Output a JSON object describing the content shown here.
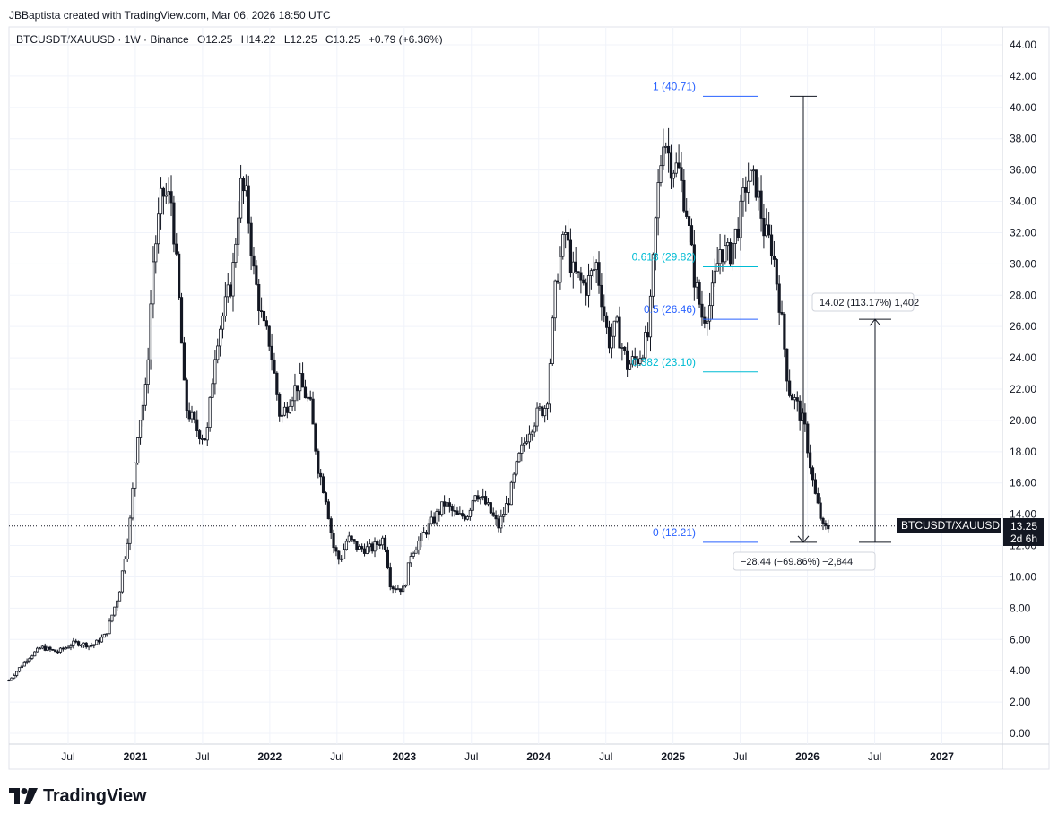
{
  "header": {
    "text": "JBBaptista created with TradingView.com, Mar 06, 2026 18:50 UTC"
  },
  "legend": {
    "symbol": "BTCUSDT/XAUUSD · 1W · Binance",
    "open": "O12.25",
    "high": "H14.22",
    "low": "L12.25",
    "close": "C13.25",
    "change": "+0.79 (+6.36%)"
  },
  "price_label": {
    "symbol": "BTCUSDT/XAUUSD",
    "value": "13.25",
    "countdown": "2d 6h"
  },
  "measure_up": {
    "text": "14.02 (113.17%) 1,402"
  },
  "measure_down": {
    "text": "−28.44 (−69.86%) −2,844"
  },
  "fib_levels": [
    {
      "label": "1 (40.71)",
      "value": 40.71,
      "color": "#2962ff"
    },
    {
      "label": "0.618 (29.82)",
      "value": 29.82,
      "color": "#00bcd4"
    },
    {
      "label": "0.5 (26.46)",
      "value": 26.46,
      "color": "#2962ff"
    },
    {
      "label": "0.382 (23.10)",
      "value": 23.1,
      "color": "#00bcd4"
    },
    {
      "label": "0 (12.21)",
      "value": 12.21,
      "color": "#2962ff"
    }
  ],
  "footer": {
    "brand": "TradingView"
  },
  "chart_data": {
    "type": "candlestick",
    "symbol": "BTCUSDT/XAUUSD",
    "interval": "1W",
    "ylim": [
      0,
      44
    ],
    "y_ticks": [
      "44.00",
      "42.00",
      "40.00",
      "38.00",
      "36.00",
      "34.00",
      "32.00",
      "30.00",
      "28.00",
      "26.00",
      "24.00",
      "22.00",
      "20.00",
      "18.00",
      "16.00",
      "14.00",
      "12.00",
      "10.00",
      "8.00",
      "6.00",
      "4.00",
      "2.00",
      "0.00"
    ],
    "x_ticks": [
      {
        "label": "Jul",
        "bold": false
      },
      {
        "label": "2021",
        "bold": true
      },
      {
        "label": "Jul",
        "bold": false
      },
      {
        "label": "2022",
        "bold": true
      },
      {
        "label": "Jul",
        "bold": false
      },
      {
        "label": "2023",
        "bold": true
      },
      {
        "label": "Jul",
        "bold": false
      },
      {
        "label": "2024",
        "bold": true
      },
      {
        "label": "Jul",
        "bold": false
      },
      {
        "label": "2025",
        "bold": true
      },
      {
        "label": "Jul",
        "bold": false
      },
      {
        "label": "2026",
        "bold": true
      },
      {
        "label": "Jul",
        "bold": false
      },
      {
        "label": "2027",
        "bold": true
      }
    ],
    "x_range": [
      2020.06,
      2027.45
    ],
    "tick_positions": [
      2020.5,
      2021.0,
      2021.5,
      2022.0,
      2022.5,
      2023.0,
      2023.5,
      2024.0,
      2024.5,
      2025.0,
      2025.5,
      2026.0,
      2026.5,
      2027.0
    ],
    "anchors": [
      [
        2020.06,
        3.4
      ],
      [
        2020.2,
        4.8
      ],
      [
        2020.3,
        5.5
      ],
      [
        2020.42,
        5.2
      ],
      [
        2020.55,
        5.8
      ],
      [
        2020.68,
        5.6
      ],
      [
        2020.78,
        6.3
      ],
      [
        2020.88,
        9.0
      ],
      [
        2020.96,
        13.5
      ],
      [
        2021.02,
        19.5
      ],
      [
        2021.08,
        22.0
      ],
      [
        2021.13,
        30.0
      ],
      [
        2021.2,
        34.5
      ],
      [
        2021.27,
        34.0
      ],
      [
        2021.33,
        27.0
      ],
      [
        2021.37,
        21.0
      ],
      [
        2021.45,
        19.5
      ],
      [
        2021.53,
        18.8
      ],
      [
        2021.6,
        25.0
      ],
      [
        2021.66,
        27.0
      ],
      [
        2021.72,
        29.0
      ],
      [
        2021.78,
        35.0
      ],
      [
        2021.83,
        34.0
      ],
      [
        2021.88,
        29.5
      ],
      [
        2021.95,
        26.0
      ],
      [
        2022.0,
        25.0
      ],
      [
        2022.08,
        20.0
      ],
      [
        2022.15,
        21.5
      ],
      [
        2022.22,
        22.5
      ],
      [
        2022.3,
        21.0
      ],
      [
        2022.36,
        17.0
      ],
      [
        2022.42,
        15.0
      ],
      [
        2022.47,
        12.0
      ],
      [
        2022.52,
        11.0
      ],
      [
        2022.58,
        12.5
      ],
      [
        2022.66,
        11.8
      ],
      [
        2022.76,
        11.8
      ],
      [
        2022.85,
        12.5
      ],
      [
        2022.9,
        9.4
      ],
      [
        2023.0,
        9.2
      ],
      [
        2023.05,
        11.5
      ],
      [
        2023.15,
        12.8
      ],
      [
        2023.23,
        13.8
      ],
      [
        2023.3,
        14.7
      ],
      [
        2023.4,
        13.8
      ],
      [
        2023.47,
        14.0
      ],
      [
        2023.53,
        15.5
      ],
      [
        2023.62,
        14.5
      ],
      [
        2023.7,
        13.2
      ],
      [
        2023.78,
        15.0
      ],
      [
        2023.85,
        17.5
      ],
      [
        2023.93,
        19.5
      ],
      [
        2024.0,
        20.5
      ],
      [
        2024.06,
        21.0
      ],
      [
        2024.13,
        29.0
      ],
      [
        2024.2,
        32.0
      ],
      [
        2024.25,
        29.5
      ],
      [
        2024.35,
        28.5
      ],
      [
        2024.43,
        30.0
      ],
      [
        2024.52,
        25.0
      ],
      [
        2024.58,
        26.0
      ],
      [
        2024.66,
        23.5
      ],
      [
        2024.74,
        24.0
      ],
      [
        2024.82,
        25.5
      ],
      [
        2024.88,
        34.0
      ],
      [
        2024.93,
        38.5
      ],
      [
        2024.98,
        36.5
      ],
      [
        2025.04,
        36.0
      ],
      [
        2025.1,
        33.5
      ],
      [
        2025.16,
        29.0
      ],
      [
        2025.22,
        26.5
      ],
      [
        2025.28,
        27.5
      ],
      [
        2025.35,
        31.0
      ],
      [
        2025.42,
        30.5
      ],
      [
        2025.5,
        33.0
      ],
      [
        2025.55,
        35.5
      ],
      [
        2025.62,
        35.0
      ],
      [
        2025.68,
        32.0
      ],
      [
        2025.74,
        31.0
      ],
      [
        2025.8,
        27.0
      ],
      [
        2025.86,
        22.0
      ],
      [
        2025.92,
        21.0
      ],
      [
        2025.98,
        19.5
      ],
      [
        2026.05,
        15.5
      ],
      [
        2026.12,
        13.0
      ],
      [
        2026.17,
        13.25
      ]
    ]
  }
}
